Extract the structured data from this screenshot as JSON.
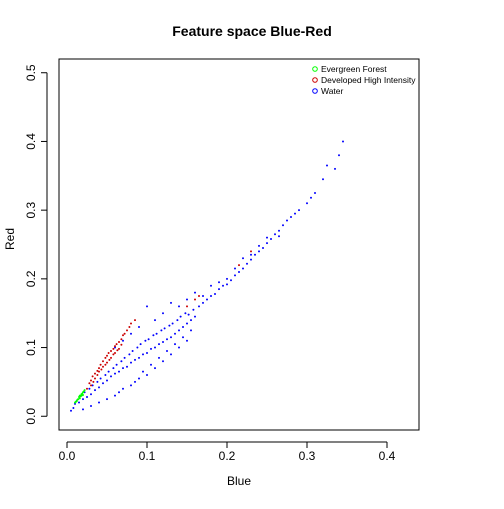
{
  "chart_data": {
    "type": "scatter",
    "title": "Feature space Blue-Red",
    "xlabel": "Blue",
    "ylabel": "Red",
    "xlim": [
      -0.01,
      0.44
    ],
    "ylim": [
      -0.02,
      0.52
    ],
    "x_ticks": [
      0.0,
      0.1,
      0.2,
      0.3,
      0.4
    ],
    "x_tick_labels": [
      "0.0",
      "0.1",
      "0.2",
      "0.3",
      "0.4"
    ],
    "y_ticks": [
      0.0,
      0.1,
      0.2,
      0.3,
      0.4,
      0.5
    ],
    "y_tick_labels": [
      "0.0",
      "0.1",
      "0.2",
      "0.3",
      "0.4",
      "0.5"
    ],
    "grid": false,
    "legend_position": "top-right",
    "series": [
      {
        "name": "Water",
        "color": "#0000ff",
        "points": [
          [
            0.005,
            0.008
          ],
          [
            0.008,
            0.012
          ],
          [
            0.01,
            0.018
          ],
          [
            0.012,
            0.022
          ],
          [
            0.015,
            0.02
          ],
          [
            0.018,
            0.03
          ],
          [
            0.02,
            0.025
          ],
          [
            0.022,
            0.035
          ],
          [
            0.025,
            0.028
          ],
          [
            0.028,
            0.04
          ],
          [
            0.03,
            0.032
          ],
          [
            0.032,
            0.045
          ],
          [
            0.035,
            0.038
          ],
          [
            0.038,
            0.05
          ],
          [
            0.04,
            0.042
          ],
          [
            0.042,
            0.055
          ],
          [
            0.045,
            0.048
          ],
          [
            0.048,
            0.06
          ],
          [
            0.05,
            0.052
          ],
          [
            0.052,
            0.065
          ],
          [
            0.055,
            0.058
          ],
          [
            0.058,
            0.07
          ],
          [
            0.06,
            0.062
          ],
          [
            0.062,
            0.075
          ],
          [
            0.065,
            0.065
          ],
          [
            0.068,
            0.08
          ],
          [
            0.07,
            0.07
          ],
          [
            0.072,
            0.085
          ],
          [
            0.075,
            0.072
          ],
          [
            0.078,
            0.09
          ],
          [
            0.08,
            0.078
          ],
          [
            0.082,
            0.095
          ],
          [
            0.085,
            0.082
          ],
          [
            0.088,
            0.1
          ],
          [
            0.09,
            0.085
          ],
          [
            0.092,
            0.105
          ],
          [
            0.095,
            0.09
          ],
          [
            0.098,
            0.11
          ],
          [
            0.1,
            0.092
          ],
          [
            0.102,
            0.112
          ],
          [
            0.105,
            0.098
          ],
          [
            0.108,
            0.118
          ],
          [
            0.11,
            0.1
          ],
          [
            0.112,
            0.12
          ],
          [
            0.115,
            0.105
          ],
          [
            0.118,
            0.125
          ],
          [
            0.12,
            0.108
          ],
          [
            0.122,
            0.128
          ],
          [
            0.125,
            0.112
          ],
          [
            0.128,
            0.132
          ],
          [
            0.13,
            0.115
          ],
          [
            0.132,
            0.135
          ],
          [
            0.135,
            0.12
          ],
          [
            0.138,
            0.14
          ],
          [
            0.14,
            0.125
          ],
          [
            0.142,
            0.145
          ],
          [
            0.145,
            0.13
          ],
          [
            0.148,
            0.15
          ],
          [
            0.15,
            0.135
          ],
          [
            0.152,
            0.148
          ],
          [
            0.155,
            0.14
          ],
          [
            0.158,
            0.155
          ],
          [
            0.16,
            0.145
          ],
          [
            0.165,
            0.16
          ],
          [
            0.17,
            0.165
          ],
          [
            0.175,
            0.17
          ],
          [
            0.18,
            0.175
          ],
          [
            0.185,
            0.178
          ],
          [
            0.19,
            0.185
          ],
          [
            0.195,
            0.19
          ],
          [
            0.2,
            0.192
          ],
          [
            0.205,
            0.198
          ],
          [
            0.21,
            0.205
          ],
          [
            0.215,
            0.21
          ],
          [
            0.22,
            0.215
          ],
          [
            0.225,
            0.222
          ],
          [
            0.23,
            0.228
          ],
          [
            0.235,
            0.235
          ],
          [
            0.24,
            0.24
          ],
          [
            0.245,
            0.245
          ],
          [
            0.25,
            0.252
          ],
          [
            0.255,
            0.258
          ],
          [
            0.26,
            0.265
          ],
          [
            0.265,
            0.27
          ],
          [
            0.27,
            0.278
          ],
          [
            0.275,
            0.285
          ],
          [
            0.28,
            0.29
          ],
          [
            0.29,
            0.3
          ],
          [
            0.3,
            0.31
          ],
          [
            0.31,
            0.325
          ],
          [
            0.32,
            0.345
          ],
          [
            0.325,
            0.365
          ],
          [
            0.335,
            0.36
          ],
          [
            0.34,
            0.38
          ],
          [
            0.345,
            0.4
          ],
          [
            0.05,
            0.025
          ],
          [
            0.06,
            0.03
          ],
          [
            0.07,
            0.04
          ],
          [
            0.08,
            0.045
          ],
          [
            0.09,
            0.055
          ],
          [
            0.1,
            0.06
          ],
          [
            0.11,
            0.07
          ],
          [
            0.12,
            0.08
          ],
          [
            0.13,
            0.09
          ],
          [
            0.14,
            0.1
          ],
          [
            0.15,
            0.11
          ],
          [
            0.04,
            0.02
          ],
          [
            0.03,
            0.015
          ],
          [
            0.02,
            0.01
          ],
          [
            0.065,
            0.035
          ],
          [
            0.085,
            0.05
          ],
          [
            0.095,
            0.065
          ],
          [
            0.105,
            0.075
          ],
          [
            0.115,
            0.085
          ],
          [
            0.125,
            0.095
          ],
          [
            0.135,
            0.105
          ],
          [
            0.145,
            0.115
          ],
          [
            0.155,
            0.125
          ],
          [
            0.06,
            0.1
          ],
          [
            0.07,
            0.11
          ],
          [
            0.08,
            0.12
          ],
          [
            0.09,
            0.13
          ],
          [
            0.1,
            0.16
          ],
          [
            0.11,
            0.14
          ],
          [
            0.12,
            0.15
          ],
          [
            0.13,
            0.165
          ],
          [
            0.14,
            0.16
          ],
          [
            0.15,
            0.17
          ],
          [
            0.16,
            0.18
          ],
          [
            0.17,
            0.175
          ],
          [
            0.18,
            0.19
          ],
          [
            0.19,
            0.195
          ],
          [
            0.2,
            0.2
          ],
          [
            0.21,
            0.215
          ],
          [
            0.22,
            0.23
          ],
          [
            0.23,
            0.235
          ],
          [
            0.24,
            0.248
          ],
          [
            0.25,
            0.26
          ],
          [
            0.265,
            0.262
          ],
          [
            0.285,
            0.295
          ],
          [
            0.305,
            0.318
          ]
        ]
      },
      {
        "name": "Developed High Intensity",
        "color": "#cc0000",
        "points": [
          [
            0.025,
            0.04
          ],
          [
            0.028,
            0.048
          ],
          [
            0.03,
            0.052
          ],
          [
            0.032,
            0.058
          ],
          [
            0.035,
            0.062
          ],
          [
            0.038,
            0.066
          ],
          [
            0.04,
            0.07
          ],
          [
            0.042,
            0.075
          ],
          [
            0.045,
            0.08
          ],
          [
            0.048,
            0.085
          ],
          [
            0.05,
            0.088
          ],
          [
            0.052,
            0.092
          ],
          [
            0.055,
            0.095
          ],
          [
            0.058,
            0.098
          ],
          [
            0.06,
            0.102
          ],
          [
            0.062,
            0.105
          ],
          [
            0.065,
            0.108
          ],
          [
            0.068,
            0.112
          ],
          [
            0.07,
            0.118
          ],
          [
            0.072,
            0.12
          ],
          [
            0.075,
            0.125
          ],
          [
            0.078,
            0.13
          ],
          [
            0.08,
            0.135
          ],
          [
            0.085,
            0.14
          ],
          [
            0.03,
            0.045
          ],
          [
            0.035,
            0.055
          ],
          [
            0.04,
            0.065
          ],
          [
            0.045,
            0.072
          ],
          [
            0.05,
            0.078
          ],
          [
            0.055,
            0.085
          ],
          [
            0.06,
            0.092
          ],
          [
            0.065,
            0.098
          ],
          [
            0.033,
            0.05
          ],
          [
            0.038,
            0.06
          ],
          [
            0.043,
            0.068
          ],
          [
            0.048,
            0.075
          ],
          [
            0.053,
            0.082
          ],
          [
            0.058,
            0.09
          ],
          [
            0.063,
            0.096
          ],
          [
            0.068,
            0.104
          ],
          [
            0.15,
            0.16
          ],
          [
            0.16,
            0.17
          ],
          [
            0.165,
            0.175
          ],
          [
            0.215,
            0.22
          ],
          [
            0.23,
            0.24
          ]
        ]
      },
      {
        "name": "Evergreen Forest",
        "color": "#00ff00",
        "points": [
          [
            0.01,
            0.02
          ],
          [
            0.012,
            0.022
          ],
          [
            0.014,
            0.025
          ],
          [
            0.015,
            0.028
          ],
          [
            0.016,
            0.03
          ],
          [
            0.018,
            0.032
          ],
          [
            0.02,
            0.035
          ],
          [
            0.022,
            0.038
          ],
          [
            0.013,
            0.024
          ],
          [
            0.017,
            0.029
          ],
          [
            0.019,
            0.033
          ],
          [
            0.021,
            0.036
          ],
          [
            0.011,
            0.021
          ],
          [
            0.016,
            0.026
          ],
          [
            0.018,
            0.03
          ],
          [
            0.02,
            0.031
          ]
        ]
      }
    ],
    "legend": [
      {
        "label": "Evergreen Forest",
        "color": "#00ff00"
      },
      {
        "label": "Developed High Intensity",
        "color": "#cc0000"
      },
      {
        "label": "Water",
        "color": "#0000ff"
      }
    ]
  }
}
